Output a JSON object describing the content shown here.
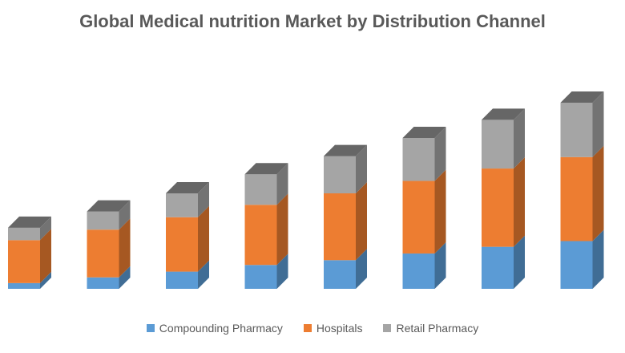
{
  "chart_data": {
    "type": "bar",
    "stacked": true,
    "style": "3d-column",
    "title": "Global Medical nutrition Market by Distribution Channel",
    "categories": [
      "",
      "",
      "",
      "",
      "",
      "",
      "",
      ""
    ],
    "series": [
      {
        "name": "Compounding Pharmacy",
        "color": "#5B9BD5",
        "values": [
          6,
          12,
          18,
          25,
          30,
          37,
          44,
          50
        ]
      },
      {
        "name": "Hospitals",
        "color": "#ED7D31",
        "values": [
          45,
          50,
          57,
          63,
          70,
          76,
          82,
          88
        ]
      },
      {
        "name": "Retail Pharmacy",
        "color": "#A5A5A5",
        "values": [
          13,
          19,
          25,
          32,
          39,
          45,
          51,
          57
        ]
      }
    ],
    "xlabel": "",
    "ylabel": "",
    "ylim": [
      0,
      200
    ],
    "grid": false,
    "legend": "bottom"
  }
}
